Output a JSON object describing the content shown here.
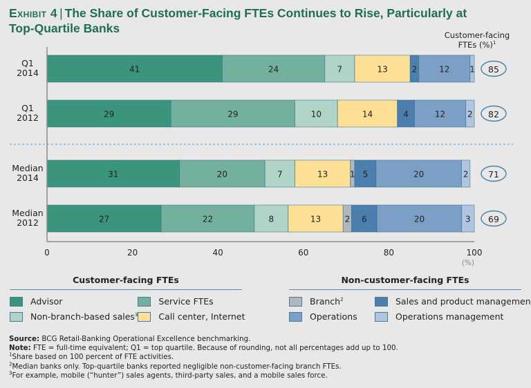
{
  "title": {
    "exhibit": "Exhibit 4",
    "separator": "|",
    "text": "The Share of Customer-Facing FTEs Continues to Rise, Particularly at Top-Quartile Banks"
  },
  "cf_header": {
    "line1": "Customer-facing",
    "line2": "FTEs (%)",
    "sup": "1"
  },
  "colors": {
    "advisor": "#3a957c",
    "service": "#73b09e",
    "non_branch_sales": "#b0d4c8",
    "call_center": "#fddf96",
    "branch": "#b2b7bf",
    "sales_product_mgmt": "#4d7fae",
    "operations": "#7c9fc6",
    "operations_mgmt": "#b0c5e1",
    "oval_stroke": "#4b7fa3",
    "divider": "#7aa7c7",
    "axis": "#8a8a8a",
    "title": "#1f6e52"
  },
  "chart_data": {
    "type": "bar",
    "orientation": "horizontal",
    "stacked": true,
    "title": "The Share of Customer-Facing FTEs Continues to Rise, Particularly at Top-Quartile Banks",
    "xlabel": "(%)",
    "ylabel": "",
    "xlim": [
      0,
      100
    ],
    "x_ticks": [
      "0",
      "20",
      "40",
      "60",
      "80",
      "100"
    ],
    "x_tick_values": [
      0,
      20,
      40,
      60,
      80,
      100
    ],
    "grid": false,
    "legend_position": "bottom",
    "categories": [
      {
        "line1": "Q1",
        "line2": "2014"
      },
      {
        "line1": "Q1",
        "line2": "2012"
      },
      {
        "line1": "Median",
        "line2": "2014"
      },
      {
        "line1": "Median",
        "line2": "2012"
      }
    ],
    "group_divider_after_index": 1,
    "series": [
      {
        "key": "advisor",
        "name": "Advisor",
        "group": "customer",
        "values": [
          41,
          29,
          31,
          27
        ]
      },
      {
        "key": "service",
        "name": "Service FTEs",
        "group": "customer",
        "values": [
          24,
          29,
          20,
          22
        ]
      },
      {
        "key": "non_branch_sales",
        "name": "Non-branch-based sales",
        "sup": "3",
        "group": "customer",
        "values": [
          7,
          10,
          7,
          8
        ]
      },
      {
        "key": "call_center",
        "name": "Call center, Internet",
        "group": "customer",
        "values": [
          13,
          14,
          13,
          13
        ]
      },
      {
        "key": "branch",
        "name": "Branch",
        "sup": "2",
        "group": "non_customer",
        "values": [
          0,
          0,
          1,
          2
        ]
      },
      {
        "key": "sales_product_mgmt",
        "name": "Sales and product management",
        "group": "non_customer",
        "values": [
          2,
          4,
          5,
          6
        ]
      },
      {
        "key": "operations",
        "name": "Operations",
        "group": "non_customer",
        "values": [
          12,
          12,
          20,
          20
        ]
      },
      {
        "key": "operations_mgmt",
        "name": "Operations management",
        "group": "non_customer",
        "values": [
          1,
          2,
          2,
          3
        ]
      }
    ],
    "customer_facing_totals": [
      85,
      82,
      71,
      69
    ],
    "customer_facing_header": "Customer-facing FTEs (%)"
  },
  "legend": {
    "customer": {
      "title": "Customer-facing FTEs",
      "items": [
        {
          "key": "advisor",
          "label": "Advisor",
          "sup": ""
        },
        {
          "key": "service",
          "label": "Service FTEs",
          "sup": ""
        },
        {
          "key": "non_branch_sales",
          "label": "Non-branch-based sales",
          "sup": "3"
        },
        {
          "key": "call_center",
          "label": "Call center, Internet",
          "sup": ""
        }
      ]
    },
    "non_customer": {
      "title": "Non-customer-facing FTEs",
      "items": [
        {
          "key": "branch",
          "label": "Branch",
          "sup": "2"
        },
        {
          "key": "sales_product_mgmt",
          "label": "Sales and product management",
          "sup": ""
        },
        {
          "key": "operations",
          "label": "Operations",
          "sup": ""
        },
        {
          "key": "operations_mgmt",
          "label": "Operations management",
          "sup": ""
        }
      ]
    }
  },
  "footnotes": {
    "source_label": "Source:",
    "source_text": " BCG Retail-Banking Operational Excellence benchmarking.",
    "note_label": "Note:",
    "note_text": " FTE = full-time equivalent; Q1 = top quartile. Because of rounding, not all percentages add up to 100.",
    "fn1_sup": "1",
    "fn1": "Share based on 100 percent of FTE activities.",
    "fn2_sup": "2",
    "fn2": "Median banks only. Top-quartile banks reported negligible non-customer-facing branch FTEs.",
    "fn3_sup": "3",
    "fn3": "For example, mobile (“hunter”) sales agents, third-party sales, and a mobile sales force."
  }
}
